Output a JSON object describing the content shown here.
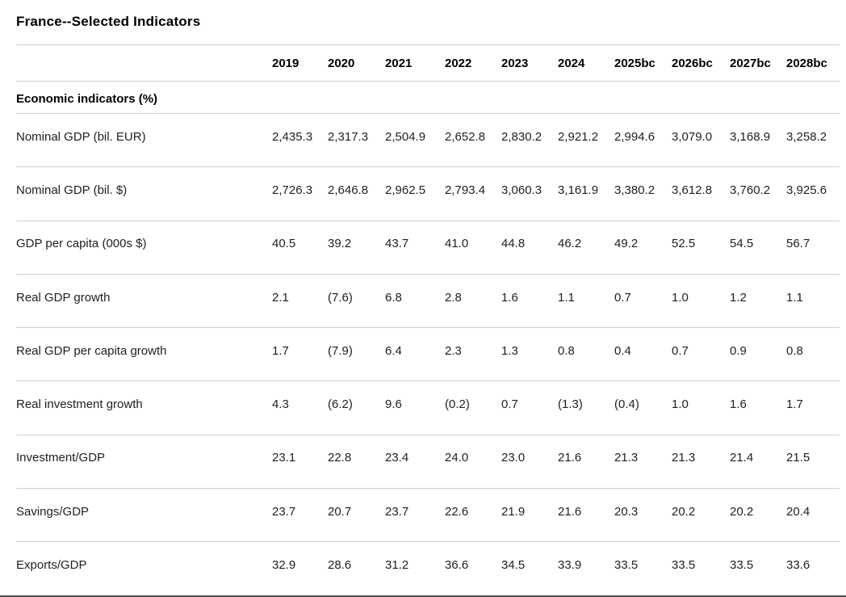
{
  "page": {
    "title": "France--Selected Indicators"
  },
  "table": {
    "year_columns": [
      "2019",
      "2020",
      "2021",
      "2022",
      "2023",
      "2024",
      "2025bc",
      "2026bc",
      "2027bc",
      "2028bc"
    ],
    "section_header": "Economic indicators (%)",
    "rows": [
      {
        "label": "Nominal GDP (bil. EUR)",
        "values": [
          "2,435.3",
          "2,317.3",
          "2,504.9",
          "2,652.8",
          "2,830.2",
          "2,921.2",
          "2,994.6",
          "3,079.0",
          "3,168.9",
          "3,258.2"
        ]
      },
      {
        "label": "Nominal GDP (bil. $)",
        "values": [
          "2,726.3",
          "2,646.8",
          "2,962.5",
          "2,793.4",
          "3,060.3",
          "3,161.9",
          "3,380.2",
          "3,612.8",
          "3,760.2",
          "3,925.6"
        ]
      },
      {
        "label": "GDP per capita (000s $)",
        "values": [
          "40.5",
          "39.2",
          "43.7",
          "41.0",
          "44.8",
          "46.2",
          "49.2",
          "52.5",
          "54.5",
          "56.7"
        ]
      },
      {
        "label": "Real GDP growth",
        "values": [
          "2.1",
          "(7.6)",
          "6.8",
          "2.8",
          "1.6",
          "1.1",
          "0.7",
          "1.0",
          "1.2",
          "1.1"
        ]
      },
      {
        "label": "Real GDP per capita growth",
        "values": [
          "1.7",
          "(7.9)",
          "6.4",
          "2.3",
          "1.3",
          "0.8",
          "0.4",
          "0.7",
          "0.9",
          "0.8"
        ]
      },
      {
        "label": "Real investment growth",
        "values": [
          "4.3",
          "(6.2)",
          "9.6",
          "(0.2)",
          "0.7",
          "(1.3)",
          "(0.4)",
          "1.0",
          "1.6",
          "1.7"
        ]
      },
      {
        "label": "Investment/GDP",
        "values": [
          "23.1",
          "22.8",
          "23.4",
          "24.0",
          "23.0",
          "21.6",
          "21.3",
          "21.3",
          "21.4",
          "21.5"
        ]
      },
      {
        "label": "Savings/GDP",
        "values": [
          "23.7",
          "20.7",
          "23.7",
          "22.6",
          "21.9",
          "21.6",
          "20.3",
          "20.2",
          "20.2",
          "20.4"
        ]
      },
      {
        "label": "Exports/GDP",
        "values": [
          "32.9",
          "28.6",
          "31.2",
          "36.6",
          "34.5",
          "33.9",
          "33.5",
          "33.5",
          "33.5",
          "33.6"
        ]
      }
    ]
  },
  "colors": {
    "background": "#ffffff",
    "divider": "#cccccc",
    "title_text": "#000000",
    "header_text": "#000000",
    "body_text": "#1f1f1f",
    "bottom_bar": "#4d4d4d"
  }
}
